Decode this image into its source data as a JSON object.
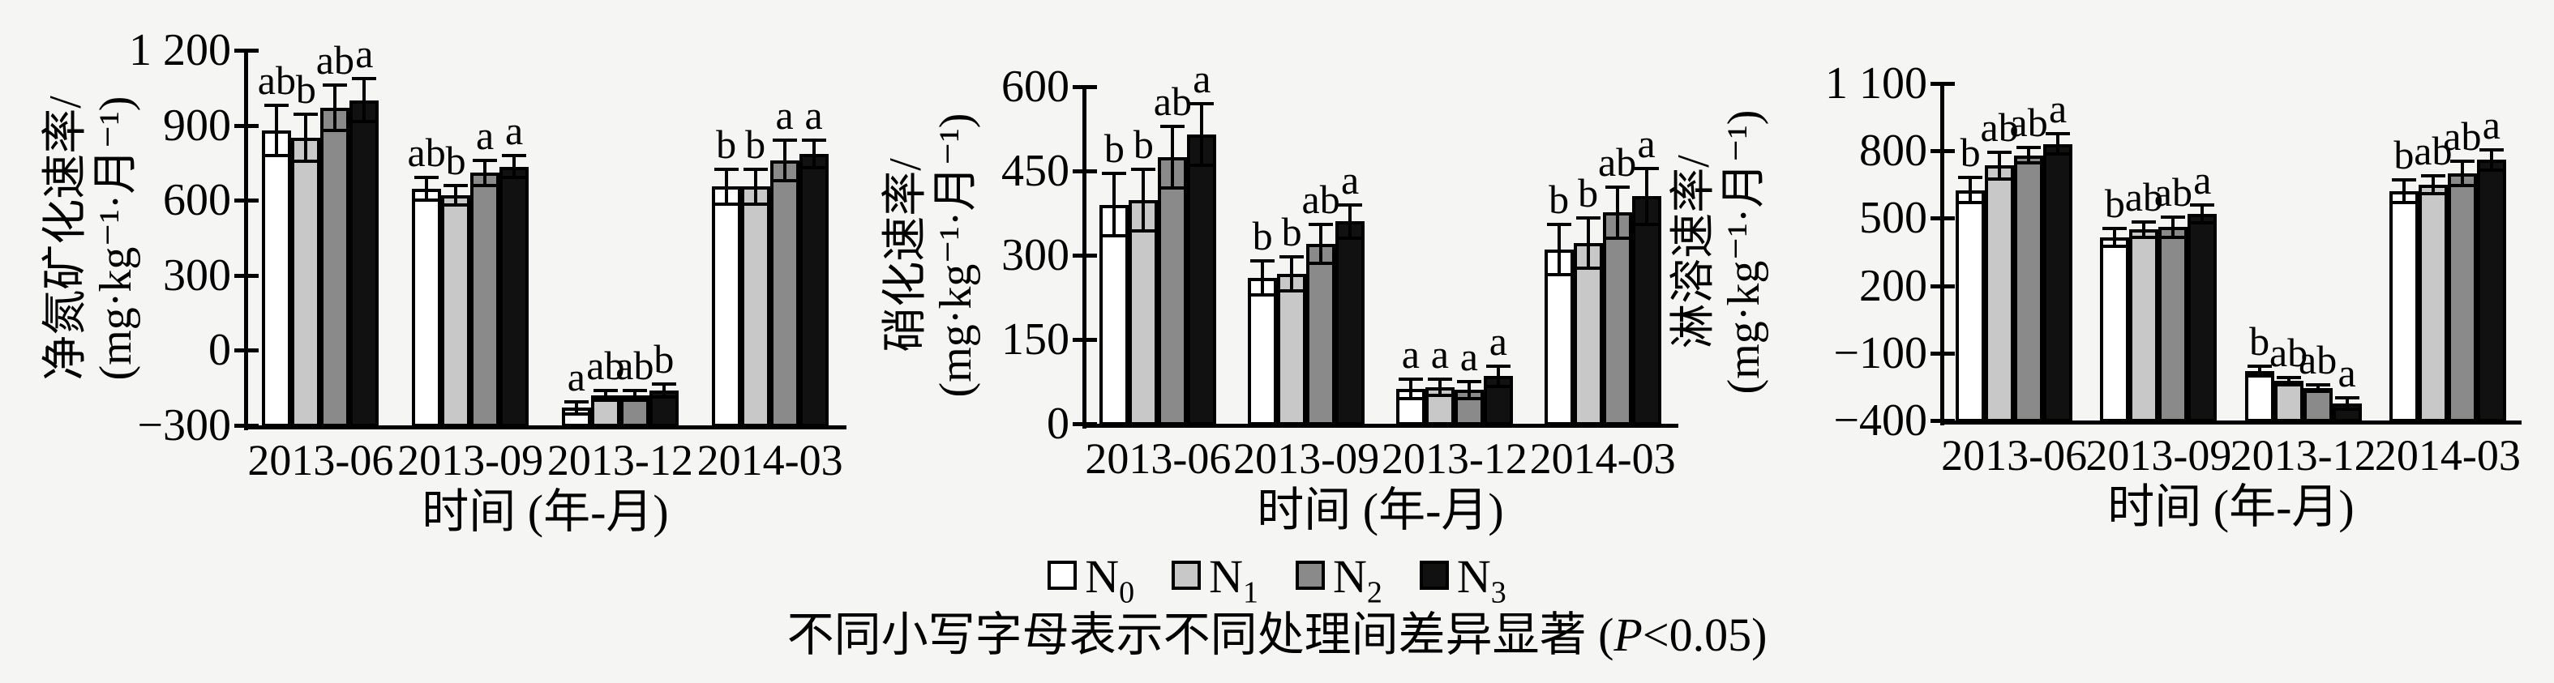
{
  "figure": {
    "background": "#f5f5f3"
  },
  "caption": {
    "prefix": "不同小写字母表示不同处理间差异显著 (",
    "p": "P",
    "suffix": "<0.05)"
  },
  "legend": {
    "position": "bottom-center",
    "items": [
      {
        "label": "N",
        "sub": "0",
        "fill": "#ffffff"
      },
      {
        "label": "N",
        "sub": "1",
        "fill": "#c8c8c8"
      },
      {
        "label": "N",
        "sub": "2",
        "fill": "#8a8a8a"
      },
      {
        "label": "N",
        "sub": "3",
        "fill": "#111111"
      }
    ]
  },
  "chart_data": [
    {
      "type": "bar",
      "panel": "net-nitrogen-mineralization-rate",
      "ylabel_lines": [
        "净氮矿化速率/",
        "(mg·kg⁻¹·月⁻¹)"
      ],
      "xlabel": "时间 (年-月)",
      "ylim": [
        -300,
        1200
      ],
      "bar_base": -300,
      "grid": false,
      "yticks": [
        {
          "v": -300,
          "label": "−300"
        },
        {
          "v": 0,
          "label": "0"
        },
        {
          "v": 300,
          "label": "300"
        },
        {
          "v": 600,
          "label": "600"
        },
        {
          "v": 900,
          "label": "900"
        },
        {
          "v": 1200,
          "label": "1 200"
        }
      ],
      "categories": [
        "2013-06",
        "2013-09",
        "2013-12",
        "2014-03"
      ],
      "series": [
        {
          "name": "N0",
          "fill": "#ffffff",
          "values": [
            880,
            645,
            -230,
            655
          ],
          "errors": [
            100,
            45,
            25,
            70
          ],
          "letters": [
            "ab",
            "ab",
            "a",
            "b"
          ]
        },
        {
          "name": "N1",
          "fill": "#c8c8c8",
          "values": [
            850,
            620,
            -180,
            655
          ],
          "errors": [
            95,
            40,
            20,
            70
          ],
          "letters": [
            "b",
            "b",
            "ab",
            "b"
          ]
        },
        {
          "name": "N2",
          "fill": "#8a8a8a",
          "values": [
            970,
            710,
            -180,
            760
          ],
          "errors": [
            90,
            50,
            20,
            80
          ],
          "letters": [
            "ab",
            "a",
            "ab",
            "a"
          ]
        },
        {
          "name": "N3",
          "fill": "#111111",
          "values": [
            1000,
            735,
            -160,
            785
          ],
          "errors": [
            85,
            45,
            25,
            55
          ],
          "letters": [
            "a",
            "a",
            "b",
            "a"
          ]
        }
      ]
    },
    {
      "type": "bar",
      "panel": "nitrification-rate",
      "ylabel_lines": [
        "硝化速率/",
        "(mg·kg⁻¹·月⁻¹)"
      ],
      "xlabel": "时间 (年-月)",
      "ylim": [
        0,
        600
      ],
      "bar_base": 0,
      "grid": false,
      "yticks": [
        {
          "v": 0,
          "label": "0"
        },
        {
          "v": 150,
          "label": "150"
        },
        {
          "v": 300,
          "label": "300"
        },
        {
          "v": 450,
          "label": "450"
        },
        {
          "v": 600,
          "label": "600"
        }
      ],
      "categories": [
        "2013-06",
        "2013-09",
        "2013-12",
        "2014-03"
      ],
      "series": [
        {
          "name": "N0",
          "fill": "#ffffff",
          "values": [
            390,
            260,
            62,
            310
          ],
          "errors": [
            55,
            30,
            18,
            45
          ],
          "letters": [
            "b",
            "b",
            "a",
            "b"
          ]
        },
        {
          "name": "N1",
          "fill": "#c8c8c8",
          "values": [
            398,
            267,
            65,
            322
          ],
          "errors": [
            55,
            30,
            15,
            45
          ],
          "letters": [
            "b",
            "b",
            "a",
            "b"
          ]
        },
        {
          "name": "N2",
          "fill": "#8a8a8a",
          "values": [
            475,
            320,
            60,
            376
          ],
          "errors": [
            55,
            35,
            15,
            45
          ],
          "letters": [
            "ab",
            "ab",
            "a",
            "ab"
          ]
        },
        {
          "name": "N3",
          "fill": "#111111",
          "values": [
            515,
            360,
            85,
            405
          ],
          "errors": [
            55,
            30,
            18,
            50
          ],
          "letters": [
            "a",
            "a",
            "a",
            "a"
          ]
        }
      ]
    },
    {
      "type": "bar",
      "panel": "leaching-rate",
      "ylabel_lines": [
        "淋溶速率/",
        "(mg·kg⁻¹·月⁻¹)"
      ],
      "xlabel": "时间 (年-月)",
      "ylim": [
        -400,
        1100
      ],
      "bar_base": -400,
      "grid": false,
      "yticks": [
        {
          "v": -400,
          "label": "−400"
        },
        {
          "v": -100,
          "label": "−100"
        },
        {
          "v": 200,
          "label": "200"
        },
        {
          "v": 500,
          "label": "500"
        },
        {
          "v": 800,
          "label": "800"
        },
        {
          "v": 1100,
          "label": "1 100"
        }
      ],
      "categories": [
        "2013-06",
        "2013-09",
        "2013-12",
        "2014-03"
      ],
      "series": [
        {
          "name": "N0",
          "fill": "#ffffff",
          "values": [
            625,
            415,
            -180,
            620
          ],
          "errors": [
            55,
            40,
            20,
            50
          ],
          "letters": [
            "b",
            "b",
            "b",
            "b"
          ]
        },
        {
          "name": "N1",
          "fill": "#c8c8c8",
          "values": [
            735,
            450,
            -225,
            650
          ],
          "errors": [
            60,
            35,
            15,
            40
          ],
          "letters": [
            "ab",
            "ab",
            "ab",
            "ab"
          ]
        },
        {
          "name": "N2",
          "fill": "#8a8a8a",
          "values": [
            780,
            460,
            -255,
            700
          ],
          "errors": [
            35,
            45,
            15,
            55
          ],
          "letters": [
            "ab",
            "ab",
            "ab",
            "ab"
          ]
        },
        {
          "name": "N3",
          "fill": "#111111",
          "values": [
            830,
            520,
            -325,
            760
          ],
          "errors": [
            45,
            40,
            25,
            45
          ],
          "letters": [
            "a",
            "a",
            "a",
            "a"
          ]
        }
      ]
    }
  ]
}
